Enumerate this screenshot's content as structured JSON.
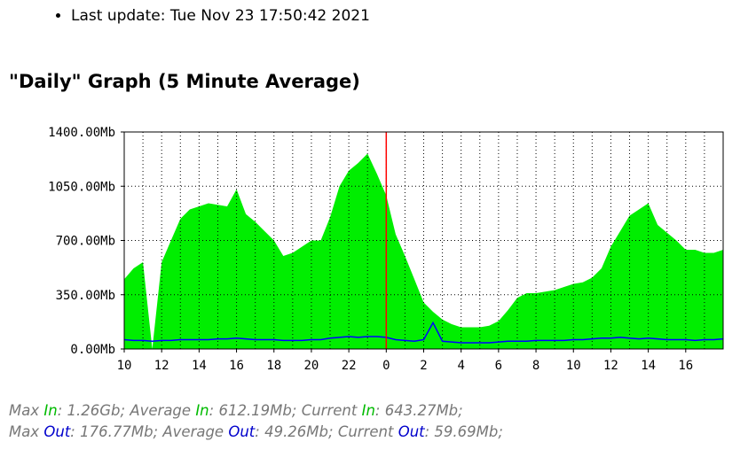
{
  "last_update": "Last update: Tue Nov 23 17:50:42 2021",
  "graph_title": "\"Daily\" Graph (5 Minute Average)",
  "colors": {
    "in": "#00ee00",
    "out": "#0000ff",
    "now_marker": "#ff0000",
    "grid": "#000000"
  },
  "chart_data": {
    "type": "area",
    "title": "\"Daily\" Graph (5 Minute Average)",
    "yticks": [
      "0.00Mb",
      "350.00Mb",
      "700.00Mb",
      "1050.00Mb",
      "1400.00Mb"
    ],
    "ylim": [
      0,
      1400
    ],
    "xticks": [
      "10",
      "12",
      "14",
      "16",
      "18",
      "20",
      "22",
      "0",
      "2",
      "4",
      "6",
      "8",
      "10",
      "12",
      "14",
      "16"
    ],
    "x_hours": [
      10,
      10.5,
      11,
      11.5,
      12,
      12.5,
      13,
      13.5,
      14,
      14.5,
      15,
      15.5,
      16,
      16.5,
      17,
      17.5,
      18,
      18.5,
      19,
      19.5,
      20,
      20.5,
      21,
      21.5,
      22,
      22.5,
      23,
      23.5,
      24,
      24.5,
      25,
      25.5,
      26,
      26.5,
      27,
      27.5,
      28,
      28.5,
      29,
      29.5,
      30,
      30.5,
      31,
      31.5,
      32,
      32.5,
      33,
      33.5,
      34,
      34.5,
      35,
      35.5,
      36,
      36.5,
      37,
      37.5,
      38,
      38.5,
      39,
      39.5,
      40,
      40.5,
      41,
      41.5,
      42
    ],
    "series": [
      {
        "name": "In",
        "values": [
          450,
          520,
          560,
          0,
          560,
          700,
          840,
          900,
          920,
          940,
          930,
          920,
          1030,
          870,
          820,
          760,
          700,
          600,
          620,
          660,
          700,
          700,
          850,
          1050,
          1150,
          1200,
          1260,
          1130,
          990,
          740,
          600,
          450,
          300,
          240,
          190,
          160,
          140,
          140,
          140,
          150,
          180,
          250,
          330,
          360,
          360,
          370,
          380,
          400,
          420,
          430,
          460,
          520,
          660,
          760,
          860,
          900,
          940,
          800,
          750,
          700,
          640,
          640,
          620,
          620,
          640
        ]
      },
      {
        "name": "Out",
        "values": [
          60,
          55,
          55,
          50,
          55,
          55,
          60,
          60,
          60,
          60,
          65,
          65,
          70,
          65,
          60,
          60,
          60,
          55,
          55,
          55,
          60,
          60,
          70,
          75,
          80,
          75,
          80,
          80,
          75,
          60,
          55,
          50,
          60,
          170,
          50,
          45,
          40,
          40,
          40,
          40,
          45,
          50,
          50,
          50,
          55,
          55,
          55,
          55,
          60,
          60,
          65,
          70,
          70,
          75,
          70,
          65,
          70,
          65,
          60,
          60,
          60,
          55,
          60,
          60,
          65
        ]
      }
    ],
    "now_marker_hour": 24
  },
  "legend": {
    "max_in_label": "Max",
    "in_word": "In",
    "max_in_value": ": 1.26Gb;",
    "avg_in_label": "Average",
    "avg_in_value": ": 612.19Mb;",
    "cur_in_label": "Current",
    "cur_in_value": ": 643.27Mb;",
    "max_out_label": "Max",
    "out_word": "Out",
    "max_out_value": ": 176.77Mb;",
    "avg_out_label": "Average",
    "avg_out_value": ": 49.26Mb;",
    "cur_out_label": "Current",
    "cur_out_value": ": 59.69Mb;"
  }
}
